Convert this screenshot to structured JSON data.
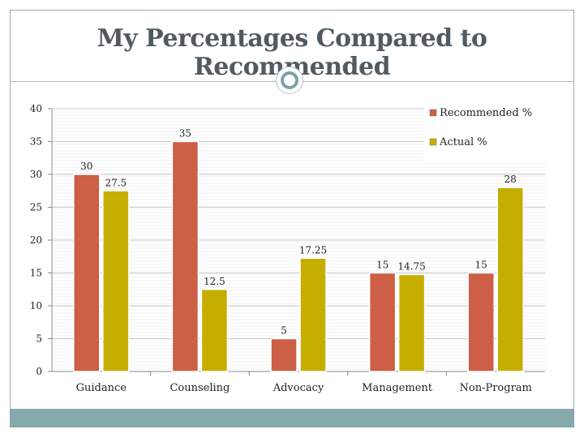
{
  "slide": {
    "title": "My Percentages Compared to Recommended"
  },
  "chart_data": {
    "type": "bar",
    "title": "",
    "xlabel": "",
    "ylabel": "",
    "ylim": [
      0,
      40
    ],
    "yticks": [
      0,
      5,
      10,
      15,
      20,
      25,
      30,
      35,
      40
    ],
    "grid": true,
    "legend": "top-right",
    "categories": [
      "Guidance",
      "Counseling",
      "Advocacy",
      "Management",
      "Non-Program"
    ],
    "series": [
      {
        "name": "Recommended %",
        "color": "#cc5f45",
        "values": [
          30,
          35,
          5,
          15,
          15
        ],
        "labels": [
          "30",
          "35",
          "5",
          "15",
          "15"
        ]
      },
      {
        "name": "Actual %",
        "color": "#c6ae00",
        "values": [
          27.5,
          12.5,
          17.25,
          14.75,
          28
        ],
        "labels": [
          "27.5",
          "12.5",
          "17.25",
          "14.75",
          "28"
        ]
      }
    ]
  }
}
